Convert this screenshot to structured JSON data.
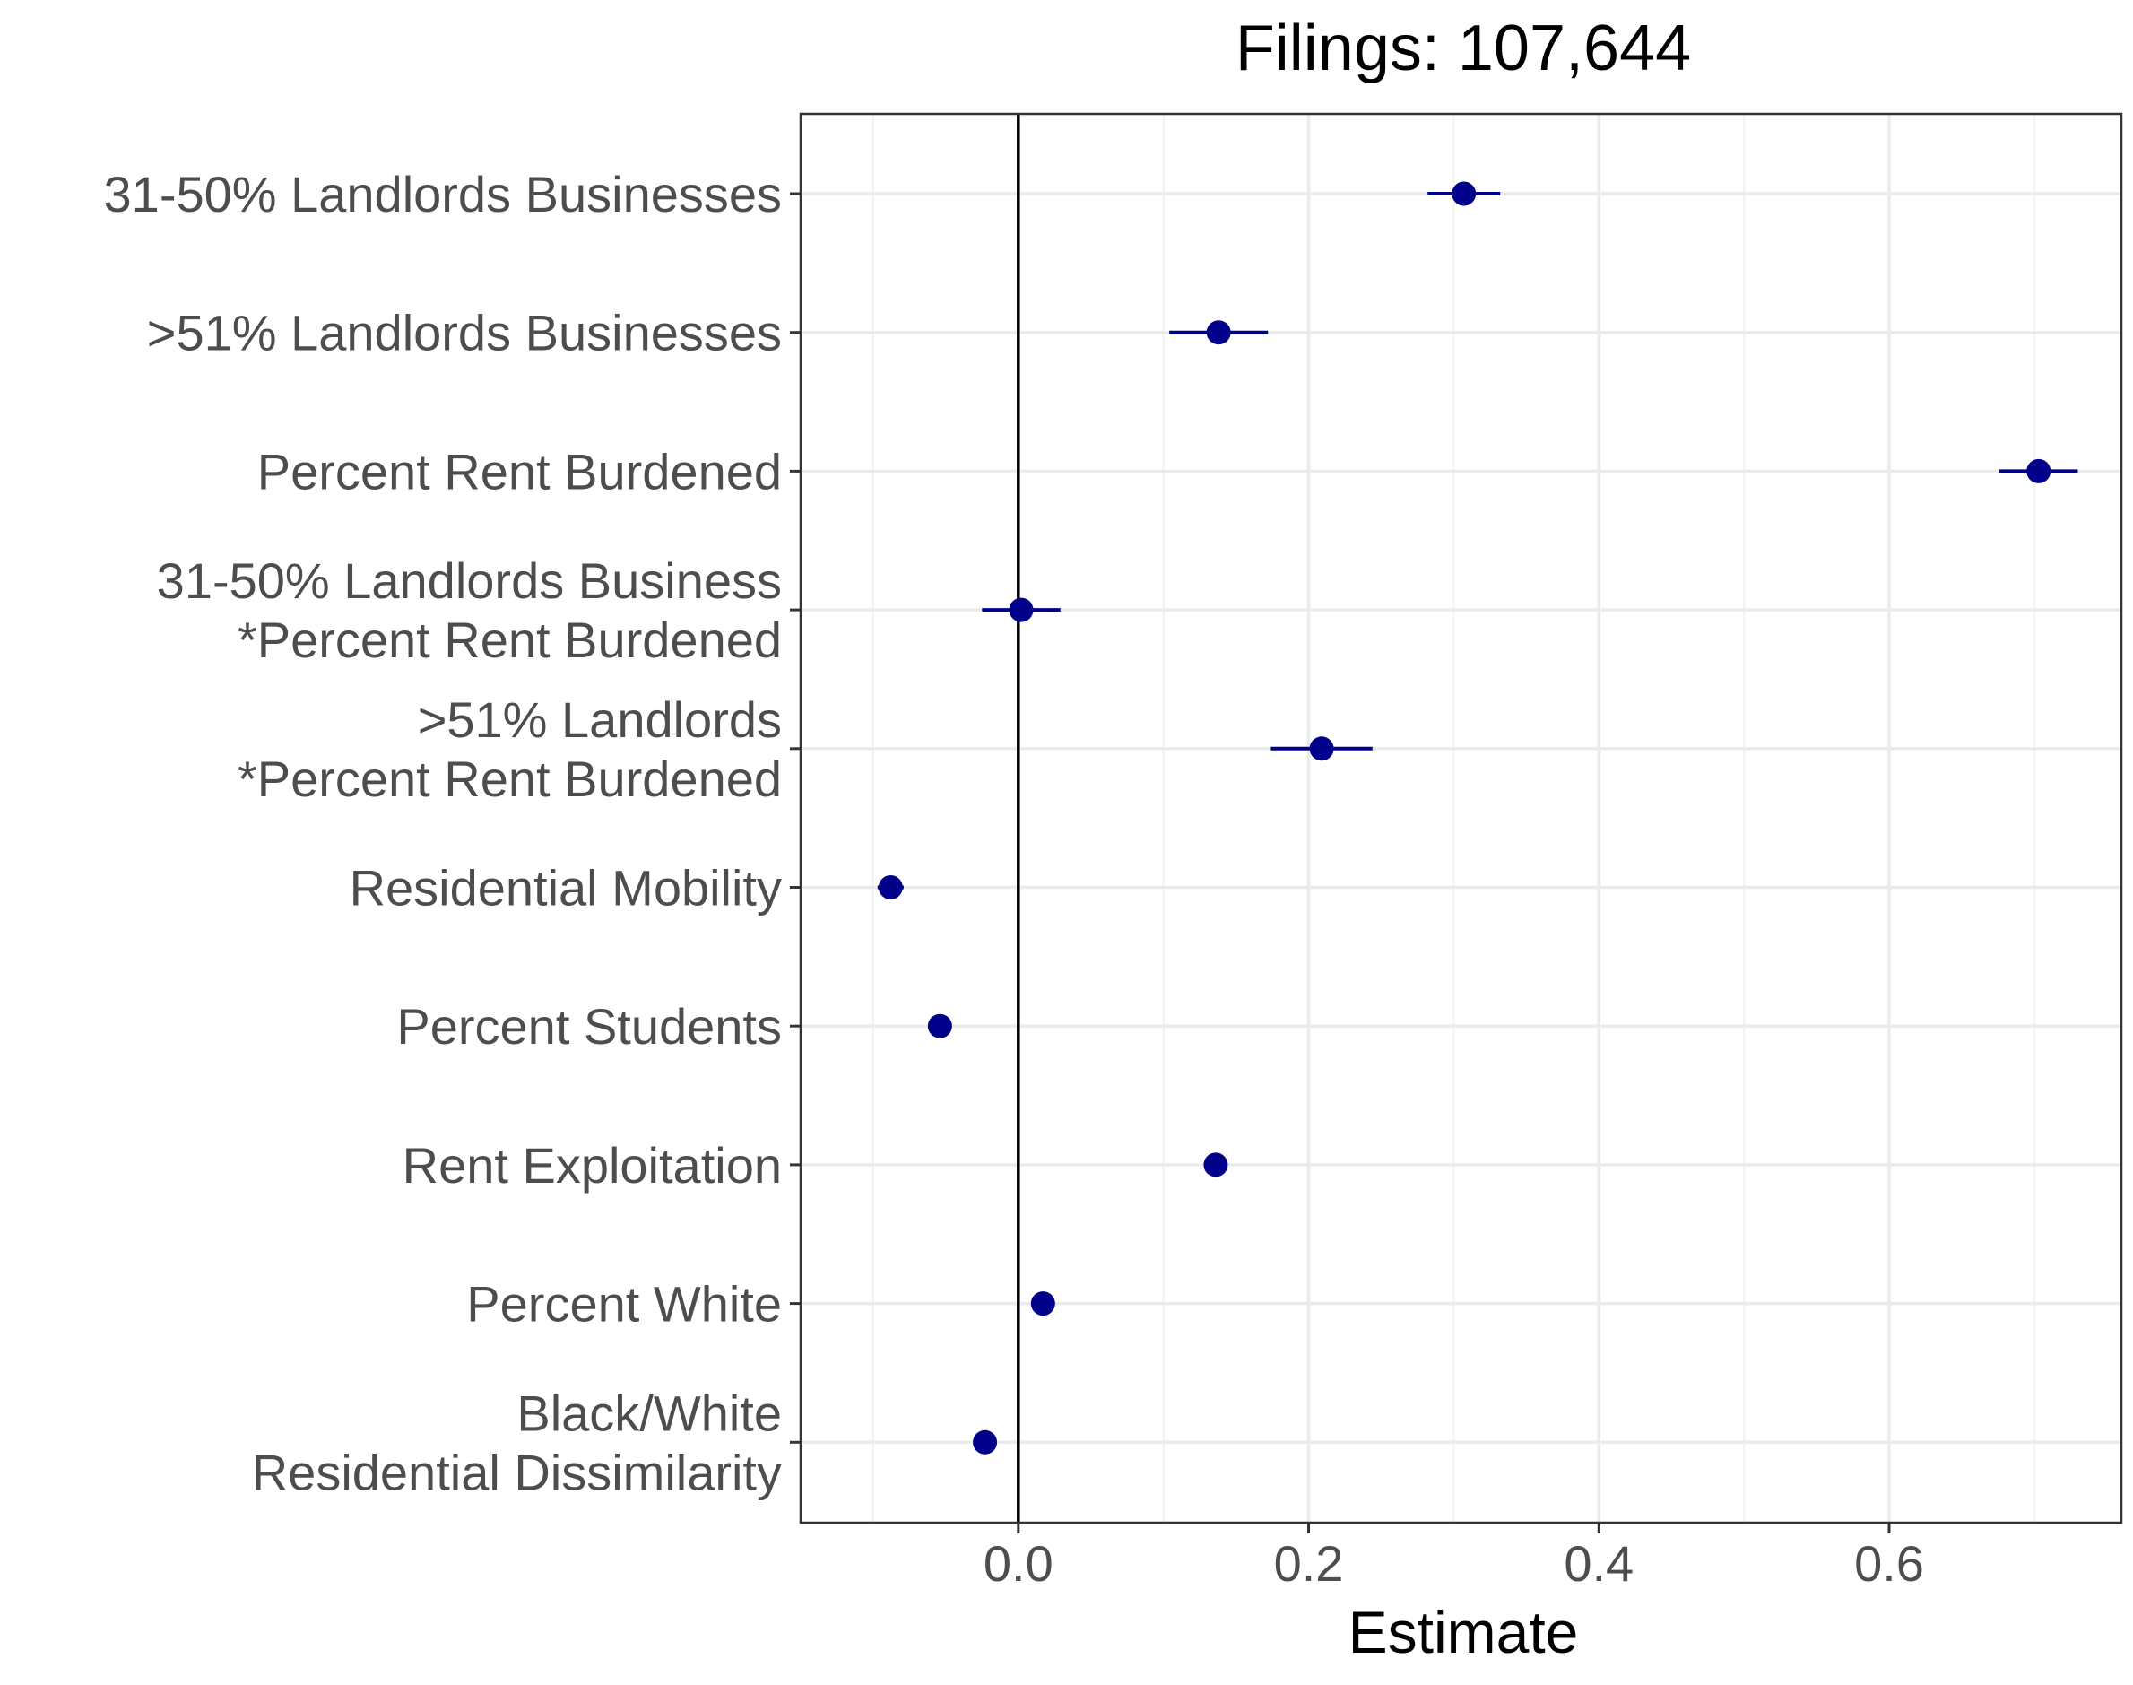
{
  "chart_data": {
    "type": "scatter",
    "title": "Filings: 107,644",
    "xlabel": "Estimate",
    "ylabel": "",
    "xlim": [
      -0.15,
      0.76
    ],
    "x_ticks": [
      0.0,
      0.2,
      0.4,
      0.6
    ],
    "x_tick_labels": [
      "0.0",
      "0.2",
      "0.4",
      "0.6"
    ],
    "reference_line_x": 0,
    "grid": true,
    "point_color": "#00008B",
    "categories": [
      [
        "31-50% Landlords Businesses"
      ],
      [
        ">51% Landlords Businesses"
      ],
      [
        "Percent Rent Burdened"
      ],
      [
        "31-50% Landlords Business",
        "*Percent Rent Burdened"
      ],
      [
        ">51% Landlords",
        "*Percent Rent Burdened"
      ],
      [
        "Residential Mobility"
      ],
      [
        "Percent Students"
      ],
      [
        "Rent Exploitation"
      ],
      [
        "Percent White"
      ],
      [
        "Black/White",
        "Residential Dissimilarity"
      ]
    ],
    "estimates": [
      0.307,
      0.138,
      0.703,
      0.002,
      0.209,
      -0.088,
      -0.054,
      0.136,
      0.017,
      -0.023
    ],
    "ci_low": [
      0.282,
      0.104,
      0.676,
      -0.025,
      0.174,
      -0.097,
      -0.058,
      0.13,
      0.013,
      -0.03
    ],
    "ci_high": [
      0.332,
      0.172,
      0.73,
      0.029,
      0.244,
      -0.079,
      -0.05,
      0.142,
      0.021,
      -0.016
    ]
  }
}
